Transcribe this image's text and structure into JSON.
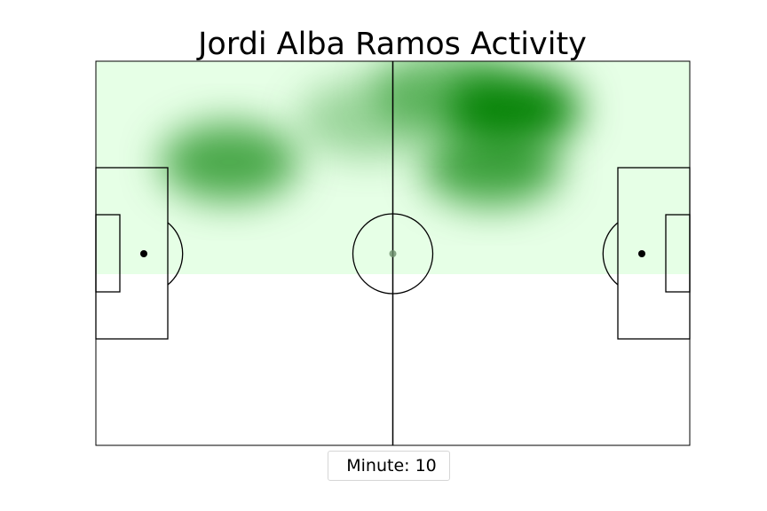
{
  "chart_data": {
    "type": "heatmap",
    "title": "Jordi Alba Ramos Activity",
    "legend": {
      "label": "Minute: 10",
      "placement": "bottom-center"
    },
    "x_range": [
      0,
      120
    ],
    "y_range": [
      0,
      80
    ],
    "grid": false,
    "colors": {
      "heat_low": "#e6ffe6",
      "heat_high": "#008000",
      "lines": "#000000"
    },
    "density_hotspots": [
      {
        "x": 84,
        "y": 10,
        "intensity": 1.0
      },
      {
        "x": 80,
        "y": 22,
        "intensity": 0.75
      },
      {
        "x": 27,
        "y": 21,
        "intensity": 0.72
      },
      {
        "x": 70,
        "y": 6,
        "intensity": 0.55
      },
      {
        "x": 55,
        "y": 12,
        "intensity": 0.35
      }
    ]
  }
}
